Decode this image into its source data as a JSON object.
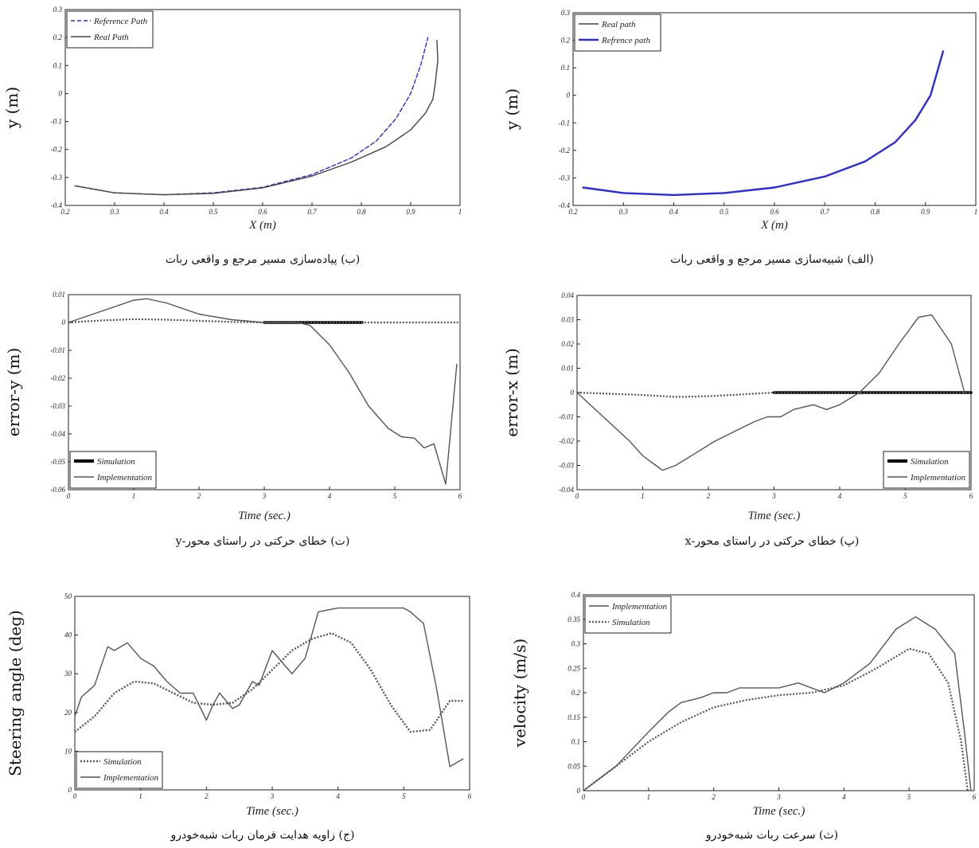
{
  "chart_data": [
    {
      "id": "b",
      "type": "line",
      "caption": "(ب) پیاده‌سازی مسیر مرجع و واقعی ربات",
      "xlabel": "X (m)",
      "ylabel": "y (m)",
      "xlim": [
        0.2,
        1.0
      ],
      "ylim": [
        -0.4,
        0.3
      ],
      "xticks": [
        "0.2",
        "0.3",
        "0.4",
        "0.5",
        "0.6",
        "0.7",
        "0.8",
        "0.9",
        "1"
      ],
      "yticks": [
        "-0.4",
        "-0.3",
        "-0.2",
        "-0.1",
        "0",
        "0.1",
        "0.2",
        "0.3"
      ],
      "legend_position": "top-left",
      "series": [
        {
          "name": "Reference Path",
          "color": "#2a2ae0",
          "style": "dashed",
          "width": 1.4,
          "x": [
            0.22,
            0.3,
            0.4,
            0.5,
            0.6,
            0.7,
            0.78,
            0.83,
            0.87,
            0.9,
            0.92,
            0.935
          ],
          "y": [
            -0.33,
            -0.355,
            -0.362,
            -0.355,
            -0.335,
            -0.29,
            -0.23,
            -0.17,
            -0.09,
            0.0,
            0.1,
            0.2
          ]
        },
        {
          "name": "Real Path",
          "color": "#444444",
          "style": "solid",
          "width": 1.4,
          "x": [
            0.22,
            0.3,
            0.4,
            0.5,
            0.6,
            0.7,
            0.78,
            0.85,
            0.9,
            0.93,
            0.945,
            0.95,
            0.955,
            0.953
          ],
          "y": [
            -0.33,
            -0.355,
            -0.362,
            -0.357,
            -0.337,
            -0.295,
            -0.245,
            -0.19,
            -0.13,
            -0.07,
            -0.02,
            0.04,
            0.12,
            0.19
          ]
        }
      ]
    },
    {
      "id": "alef",
      "type": "line",
      "caption": "(الف) شبیه‌سازی مسیر مرجع و واقعی ربات",
      "xlabel": "X (m)",
      "ylabel": "y (m)",
      "xlim": [
        0.2,
        1.0
      ],
      "ylim": [
        -0.4,
        0.3
      ],
      "xticks": [
        "0.2",
        "0.3",
        "0.4",
        "0.5",
        "0.6",
        "0.7",
        "0.8",
        "0.9",
        "1"
      ],
      "yticks": [
        "-0.4",
        "-0.3",
        "-0.2",
        "-0.1",
        "0",
        "0.1",
        "0.2",
        "0.3"
      ],
      "legend_position": "top-left",
      "series": [
        {
          "name": "Real path",
          "color": "#444444",
          "style": "solid",
          "width": 1.4,
          "x": [
            0.22,
            0.3,
            0.4,
            0.5,
            0.6,
            0.7,
            0.78,
            0.84,
            0.88,
            0.91,
            0.935
          ],
          "y": [
            -0.335,
            -0.355,
            -0.362,
            -0.355,
            -0.335,
            -0.295,
            -0.24,
            -0.17,
            -0.09,
            0.0,
            0.16
          ]
        },
        {
          "name": "Refrence path",
          "color": "#2a2ae0",
          "style": "solid",
          "width": 2.4,
          "x": [
            0.22,
            0.3,
            0.4,
            0.5,
            0.6,
            0.7,
            0.78,
            0.84,
            0.88,
            0.91,
            0.935
          ],
          "y": [
            -0.335,
            -0.355,
            -0.362,
            -0.355,
            -0.335,
            -0.295,
            -0.24,
            -0.17,
            -0.09,
            0.0,
            0.16
          ]
        }
      ]
    },
    {
      "id": "te",
      "type": "line",
      "caption": "(ت) خطای حرکتی در راستای محور-y",
      "xlabel": "Time (sec.)",
      "ylabel": "error-y (m)",
      "xlim": [
        0,
        6
      ],
      "ylim": [
        -0.06,
        0.01
      ],
      "xticks": [
        "0",
        "1",
        "2",
        "3",
        "4",
        "5",
        "6"
      ],
      "yticks": [
        "-0.06",
        "-0.05",
        "-0.04",
        "-0.03",
        "-0.02",
        "-0.01",
        "0",
        "0.01"
      ],
      "legend_position": "bottom-left",
      "series": [
        {
          "name": "Simulation",
          "color": "#000000",
          "style": "bold",
          "width": 3.5,
          "x": [
            3.0,
            4.5
          ],
          "y": [
            0,
            0
          ]
        },
        {
          "name": "Implementation",
          "color": "#555555",
          "style": "solid",
          "width": 1.4,
          "x": [
            0,
            0.5,
            1.0,
            1.2,
            1.5,
            2,
            2.5,
            3,
            3.5,
            3.7,
            4.0,
            4.3,
            4.6,
            4.9,
            5.1,
            5.3,
            5.45,
            5.6,
            5.78,
            5.95
          ],
          "y": [
            0,
            0.004,
            0.008,
            0.0085,
            0.007,
            0.003,
            0.001,
            0,
            0,
            -0.001,
            -0.008,
            -0.018,
            -0.03,
            -0.038,
            -0.041,
            -0.0415,
            -0.045,
            -0.0435,
            -0.058,
            -0.015
          ]
        },
        {
          "name": "",
          "color": "#555555",
          "style": "dotted",
          "width": 2.2,
          "x": [
            0,
            0.5,
            1.0,
            1.5,
            2,
            2.5,
            3,
            4,
            5,
            6
          ],
          "y": [
            0,
            0.0007,
            0.0012,
            0.001,
            0.0006,
            0.0002,
            0,
            0,
            0,
            0
          ]
        }
      ]
    },
    {
      "id": "pe",
      "type": "line",
      "caption": "(پ) خطای حرکتی در راستای محور-x",
      "xlabel": "Time (sec.)",
      "ylabel": "error-x (m)",
      "xlim": [
        0,
        6
      ],
      "ylim": [
        -0.04,
        0.04
      ],
      "xticks": [
        "0",
        "1",
        "2",
        "3",
        "4",
        "5",
        "6"
      ],
      "yticks": [
        "-0.04",
        "-0.03",
        "-0.02",
        "-0.01",
        "0",
        "0.01",
        "0.02",
        "0.03",
        "0.04"
      ],
      "legend_position": "bottom-right",
      "series": [
        {
          "name": "Simulation",
          "color": "#000000",
          "style": "bold",
          "width": 3.5,
          "x": [
            3.0,
            6.0
          ],
          "y": [
            0,
            0
          ]
        },
        {
          "name": "Implementation",
          "color": "#555555",
          "style": "solid",
          "width": 1.4,
          "x": [
            0,
            0.4,
            0.8,
            1.0,
            1.2,
            1.3,
            1.5,
            1.8,
            2.1,
            2.4,
            2.7,
            2.9,
            3.1,
            3.3,
            3.6,
            3.8,
            4.0,
            4.3,
            4.6,
            4.9,
            5.2,
            5.4,
            5.7,
            5.9
          ],
          "y": [
            0,
            -0.01,
            -0.02,
            -0.026,
            -0.03,
            -0.032,
            -0.03,
            -0.025,
            -0.02,
            -0.016,
            -0.012,
            -0.01,
            -0.01,
            -0.007,
            -0.005,
            -0.007,
            -0.005,
            0,
            0.008,
            0.02,
            0.031,
            0.032,
            0.02,
            0
          ]
        },
        {
          "name": "",
          "color": "#555555",
          "style": "dotted",
          "width": 2.2,
          "x": [
            0,
            0.5,
            1.0,
            1.5,
            2.0,
            2.5,
            3.0,
            4,
            5,
            6
          ],
          "y": [
            0,
            -0.0005,
            -0.001,
            -0.0018,
            -0.0015,
            -0.0008,
            0,
            0,
            0,
            0
          ]
        }
      ]
    },
    {
      "id": "je",
      "type": "line",
      "caption": "(ج) زاویه هدایت فرمان ربات شبه‌خودرو",
      "xlabel": "Time (sec.)",
      "ylabel": "Steering angle (deg)",
      "xlim": [
        0,
        6
      ],
      "ylim": [
        0,
        50
      ],
      "xticks": [
        "0",
        "1",
        "2",
        "3",
        "4",
        "5",
        "6"
      ],
      "yticks": [
        "0",
        "10",
        "20",
        "30",
        "40",
        "50"
      ],
      "legend_position": "bottom-left",
      "series": [
        {
          "name": "Simulation",
          "color": "#555555",
          "style": "dotted",
          "width": 2.4,
          "x": [
            0,
            0.3,
            0.6,
            0.9,
            1.2,
            1.5,
            1.8,
            2.1,
            2.4,
            2.7,
            3.0,
            3.3,
            3.6,
            3.9,
            4.2,
            4.5,
            4.8,
            5.1,
            5.4,
            5.7,
            5.9
          ],
          "y": [
            15,
            19,
            25,
            28,
            27.5,
            25,
            22.5,
            22,
            22.5,
            26,
            31,
            36,
            39,
            40.5,
            38,
            31,
            22,
            15,
            15.5,
            23,
            23
          ]
        },
        {
          "name": "Implementation",
          "color": "#555555",
          "style": "solid",
          "width": 1.4,
          "x": [
            0,
            0.1,
            0.3,
            0.5,
            0.6,
            0.8,
            1.0,
            1.2,
            1.4,
            1.6,
            1.8,
            2.0,
            2.1,
            2.2,
            2.4,
            2.5,
            2.7,
            2.8,
            3.0,
            3.2,
            3.3,
            3.5,
            3.7,
            4.0,
            4.5,
            5.0,
            5.1,
            5.3,
            5.5,
            5.7,
            5.9
          ],
          "y": [
            19,
            24,
            27,
            37,
            36,
            38,
            34,
            32,
            28,
            25,
            25,
            18,
            22,
            25,
            21,
            22,
            28,
            27,
            36,
            32,
            30,
            34,
            46,
            47,
            47,
            47,
            46,
            43,
            26,
            6,
            8
          ]
        }
      ]
    },
    {
      "id": "the",
      "type": "line",
      "caption": "(ث) سرعت ربات شبه‌خودرو",
      "xlabel": "Time (sec.)",
      "ylabel": "velocity (m/s)",
      "xlim": [
        0,
        6
      ],
      "ylim": [
        0,
        0.4
      ],
      "xticks": [
        "0",
        "1",
        "2",
        "3",
        "4",
        "5",
        "6"
      ],
      "yticks": [
        "0",
        "0.05",
        "0.1",
        "0.15",
        "0.2",
        "0.25",
        "0.3",
        "0.35",
        "0.4"
      ],
      "legend_position": "top-left",
      "series": [
        {
          "name": "Implementation",
          "color": "#555555",
          "style": "solid",
          "width": 1.4,
          "x": [
            0,
            0.5,
            1.0,
            1.3,
            1.5,
            1.8,
            2.0,
            2.2,
            2.4,
            2.6,
            3.0,
            3.3,
            3.7,
            4.0,
            4.4,
            4.8,
            5.1,
            5.4,
            5.7,
            5.85,
            5.95
          ],
          "y": [
            0,
            0.05,
            0.12,
            0.16,
            0.18,
            0.19,
            0.2,
            0.2,
            0.21,
            0.21,
            0.21,
            0.22,
            0.2,
            0.22,
            0.26,
            0.33,
            0.355,
            0.33,
            0.28,
            0.12,
            0
          ]
        },
        {
          "name": "Simulation",
          "color": "#555555",
          "style": "dotted",
          "width": 2.2,
          "x": [
            0,
            0.5,
            1.0,
            1.5,
            2.0,
            2.5,
            3.0,
            3.5,
            4.0,
            4.5,
            5.0,
            5.3,
            5.6,
            5.8,
            5.9
          ],
          "y": [
            0,
            0.05,
            0.1,
            0.14,
            0.17,
            0.185,
            0.195,
            0.2,
            0.215,
            0.25,
            0.29,
            0.28,
            0.22,
            0.1,
            0
          ]
        }
      ]
    }
  ]
}
